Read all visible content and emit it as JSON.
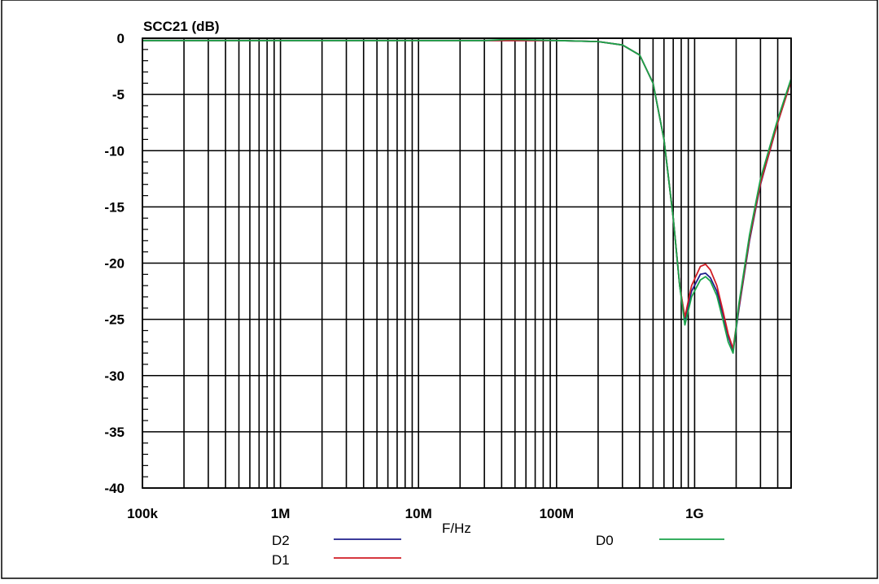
{
  "chart_data": {
    "type": "line",
    "title": "SCC21 (dB)",
    "xlabel": "F/Hz",
    "ylabel": "SCC21 (dB)",
    "x_scale": "log",
    "xlim": [
      100000,
      5000000000
    ],
    "ylim": [
      -40,
      0
    ],
    "x_ticks": [
      {
        "value": 100000,
        "label": "100k"
      },
      {
        "value": 1000000,
        "label": "1M"
      },
      {
        "value": 10000000,
        "label": "10M"
      },
      {
        "value": 100000000,
        "label": "100M"
      },
      {
        "value": 1000000000,
        "label": "1G"
      }
    ],
    "y_ticks": [
      {
        "value": 0,
        "label": "0"
      },
      {
        "value": -5,
        "label": "-5"
      },
      {
        "value": -10,
        "label": "-10"
      },
      {
        "value": -15,
        "label": "-15"
      },
      {
        "value": -20,
        "label": "-20"
      },
      {
        "value": -25,
        "label": "-25"
      },
      {
        "value": -30,
        "label": "-30"
      },
      {
        "value": -35,
        "label": "-35"
      },
      {
        "value": -40,
        "label": "-40"
      }
    ],
    "grid": true,
    "legend_position": "bottom",
    "series": [
      {
        "name": "D2",
        "color": "#1f1f8c",
        "x": [
          100000,
          1000000,
          10000000,
          30000000,
          100000000,
          200000000,
          300000000,
          400000000,
          500000000,
          600000000,
          700000000,
          780000000,
          850000000,
          950000000,
          1100000000,
          1200000000,
          1300000000,
          1450000000,
          1600000000,
          1750000000,
          1900000000,
          2100000000,
          2500000000,
          3000000000,
          4000000000,
          5000000000
        ],
        "y": [
          -0.2,
          -0.2,
          -0.2,
          -0.2,
          -0.2,
          -0.3,
          -0.6,
          -1.5,
          -4.0,
          -9.0,
          -16.0,
          -22.0,
          -25.0,
          -22.5,
          -21.0,
          -20.9,
          -21.3,
          -22.5,
          -24.5,
          -26.5,
          -27.8,
          -24.0,
          -18.0,
          -13.0,
          -7.5,
          -3.8
        ]
      },
      {
        "name": "D1",
        "color": "#d01c24",
        "x": [
          100000,
          1000000,
          10000000,
          30000000,
          100000000,
          200000000,
          300000000,
          400000000,
          500000000,
          600000000,
          700000000,
          780000000,
          850000000,
          950000000,
          1100000000,
          1200000000,
          1300000000,
          1450000000,
          1600000000,
          1750000000,
          1900000000,
          2100000000,
          2500000000,
          3000000000,
          4000000000,
          5000000000
        ],
        "y": [
          -0.2,
          -0.2,
          -0.2,
          -0.2,
          -0.2,
          -0.3,
          -0.6,
          -1.5,
          -4.0,
          -9.0,
          -16.0,
          -22.0,
          -24.8,
          -22.0,
          -20.3,
          -20.1,
          -20.6,
          -22.0,
          -24.2,
          -26.3,
          -27.6,
          -23.8,
          -17.8,
          -12.9,
          -7.5,
          -3.8
        ]
      },
      {
        "name": "D0",
        "color": "#1aa34a",
        "x": [
          100000,
          1000000,
          10000000,
          30000000,
          45000000,
          100000000,
          200000000,
          300000000,
          400000000,
          500000000,
          600000000,
          700000000,
          780000000,
          850000000,
          950000000,
          1100000000,
          1200000000,
          1300000000,
          1450000000,
          1600000000,
          1750000000,
          1900000000,
          2100000000,
          2500000000,
          3000000000,
          4000000000,
          5000000000
        ],
        "y": [
          -0.2,
          -0.2,
          -0.2,
          -0.2,
          -0.1,
          -0.2,
          -0.3,
          -0.6,
          -1.5,
          -4.0,
          -9.0,
          -16.0,
          -22.0,
          -25.5,
          -23.0,
          -21.5,
          -21.2,
          -21.6,
          -22.9,
          -25.0,
          -27.0,
          -28.0,
          -23.5,
          -17.5,
          -12.5,
          -7.2,
          -3.6
        ]
      }
    ]
  }
}
